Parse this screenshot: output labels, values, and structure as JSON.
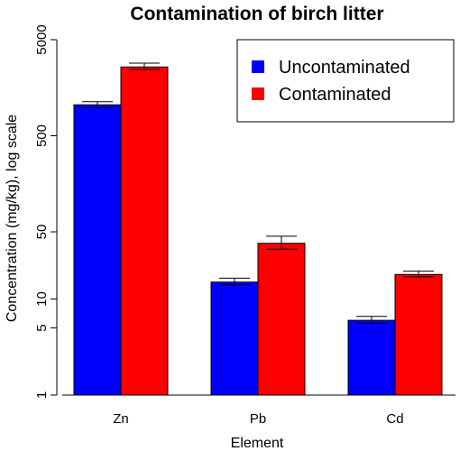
{
  "chart_data": {
    "type": "bar",
    "title": "Contamination of birch litter",
    "xlabel": "Element",
    "ylabel": "Concentration (mg/kg), log scale",
    "y_scale": "log",
    "ylim": [
      1,
      5000
    ],
    "y_ticks": [
      1,
      5,
      10,
      50,
      500,
      5000
    ],
    "grid": false,
    "legend_position": "top-right",
    "categories": [
      "Zn",
      "Pb",
      "Cd"
    ],
    "series": [
      {
        "name": "Uncontaminated",
        "color": "#0000ff",
        "values": [
          1050,
          15,
          6
        ],
        "error_low": [
          980,
          14,
          5.6
        ],
        "error_high": [
          1130,
          16.5,
          6.6
        ]
      },
      {
        "name": "Contaminated",
        "color": "#ff0000",
        "values": [
          2600,
          38,
          18
        ],
        "error_low": [
          2450,
          33,
          17
        ],
        "error_high": [
          2850,
          45,
          19.5
        ]
      }
    ]
  }
}
